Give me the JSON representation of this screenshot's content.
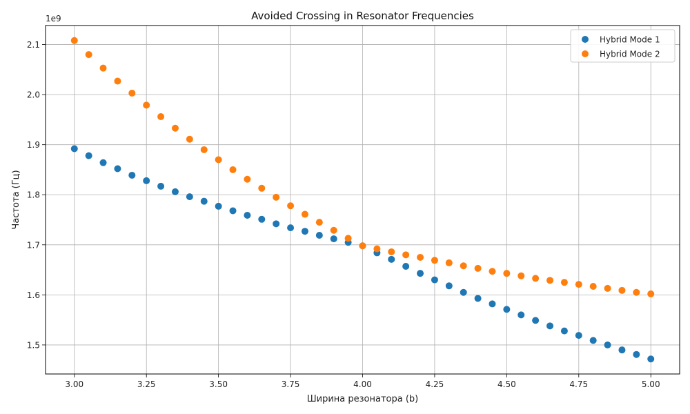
{
  "chart_data": {
    "type": "scatter",
    "title": "Avoided Crossing in Resonator Frequencies",
    "xlabel": "Ширина резонатора (b)",
    "ylabel": "Частота (Гц)",
    "y_multiplier_label": "1e9",
    "x_ticks": [
      "3.00",
      "3.25",
      "3.50",
      "3.75",
      "4.00",
      "4.25",
      "4.50",
      "4.75",
      "5.00"
    ],
    "y_ticks": [
      "1.5",
      "1.6",
      "1.7",
      "1.8",
      "1.9",
      "2.0",
      "2.1"
    ],
    "xlim": [
      2.9,
      5.1
    ],
    "ylim": [
      1442000000.0,
      2138000000.0
    ],
    "grid": true,
    "legend_position": "top-right",
    "x": [
      3.0,
      3.05,
      3.1,
      3.15,
      3.2,
      3.25,
      3.3,
      3.35,
      3.4,
      3.45,
      3.5,
      3.55,
      3.6,
      3.65,
      3.7,
      3.75,
      3.8,
      3.85,
      3.9,
      3.95,
      4.0,
      4.05,
      4.1,
      4.15,
      4.2,
      4.25,
      4.3,
      4.35,
      4.4,
      4.45,
      4.5,
      4.55,
      4.6,
      4.65,
      4.7,
      4.75,
      4.8,
      4.85,
      4.9,
      4.95,
      5.0
    ],
    "series": [
      {
        "name": "Hybrid Mode 1",
        "color": "#1f77b4",
        "values": [
          1892000000.0,
          1878000000.0,
          1864000000.0,
          1852000000.0,
          1839000000.0,
          1828000000.0,
          1817000000.0,
          1806000000.0,
          1796000000.0,
          1787000000.0,
          1777000000.0,
          1768000000.0,
          1759000000.0,
          1751000000.0,
          1742000000.0,
          1734000000.0,
          1727000000.0,
          1719000000.0,
          1712000000.0,
          1705000000.0,
          1698000000.0,
          1684000000.0,
          1671000000.0,
          1657000000.0,
          1643000000.0,
          1630000000.0,
          1618000000.0,
          1605000000.0,
          1593000000.0,
          1582000000.0,
          1571000000.0,
          1560000000.0,
          1549000000.0,
          1538000000.0,
          1528000000.0,
          1519000000.0,
          1509000000.0,
          1500000000.0,
          1490000000.0,
          1481000000.0,
          1472000000.0
        ]
      },
      {
        "name": "Hybrid Mode 2",
        "color": "#ff7f0e",
        "values": [
          2108000000.0,
          2080000000.0,
          2053000000.0,
          2027000000.0,
          2003000000.0,
          1979000000.0,
          1956000000.0,
          1933000000.0,
          1911000000.0,
          1890000000.0,
          1870000000.0,
          1850000000.0,
          1831000000.0,
          1813000000.0,
          1795000000.0,
          1778000000.0,
          1761000000.0,
          1745000000.0,
          1729000000.0,
          1713000000.0,
          1698000000.0,
          1692000000.0,
          1686000000.0,
          1680000000.0,
          1675000000.0,
          1669000000.0,
          1664000000.0,
          1658000000.0,
          1653000000.0,
          1647000000.0,
          1643000000.0,
          1638000000.0,
          1633000000.0,
          1629000000.0,
          1625000000.0,
          1621000000.0,
          1617000000.0,
          1613000000.0,
          1609000000.0,
          1605000000.0,
          1602000000.0
        ]
      }
    ]
  }
}
